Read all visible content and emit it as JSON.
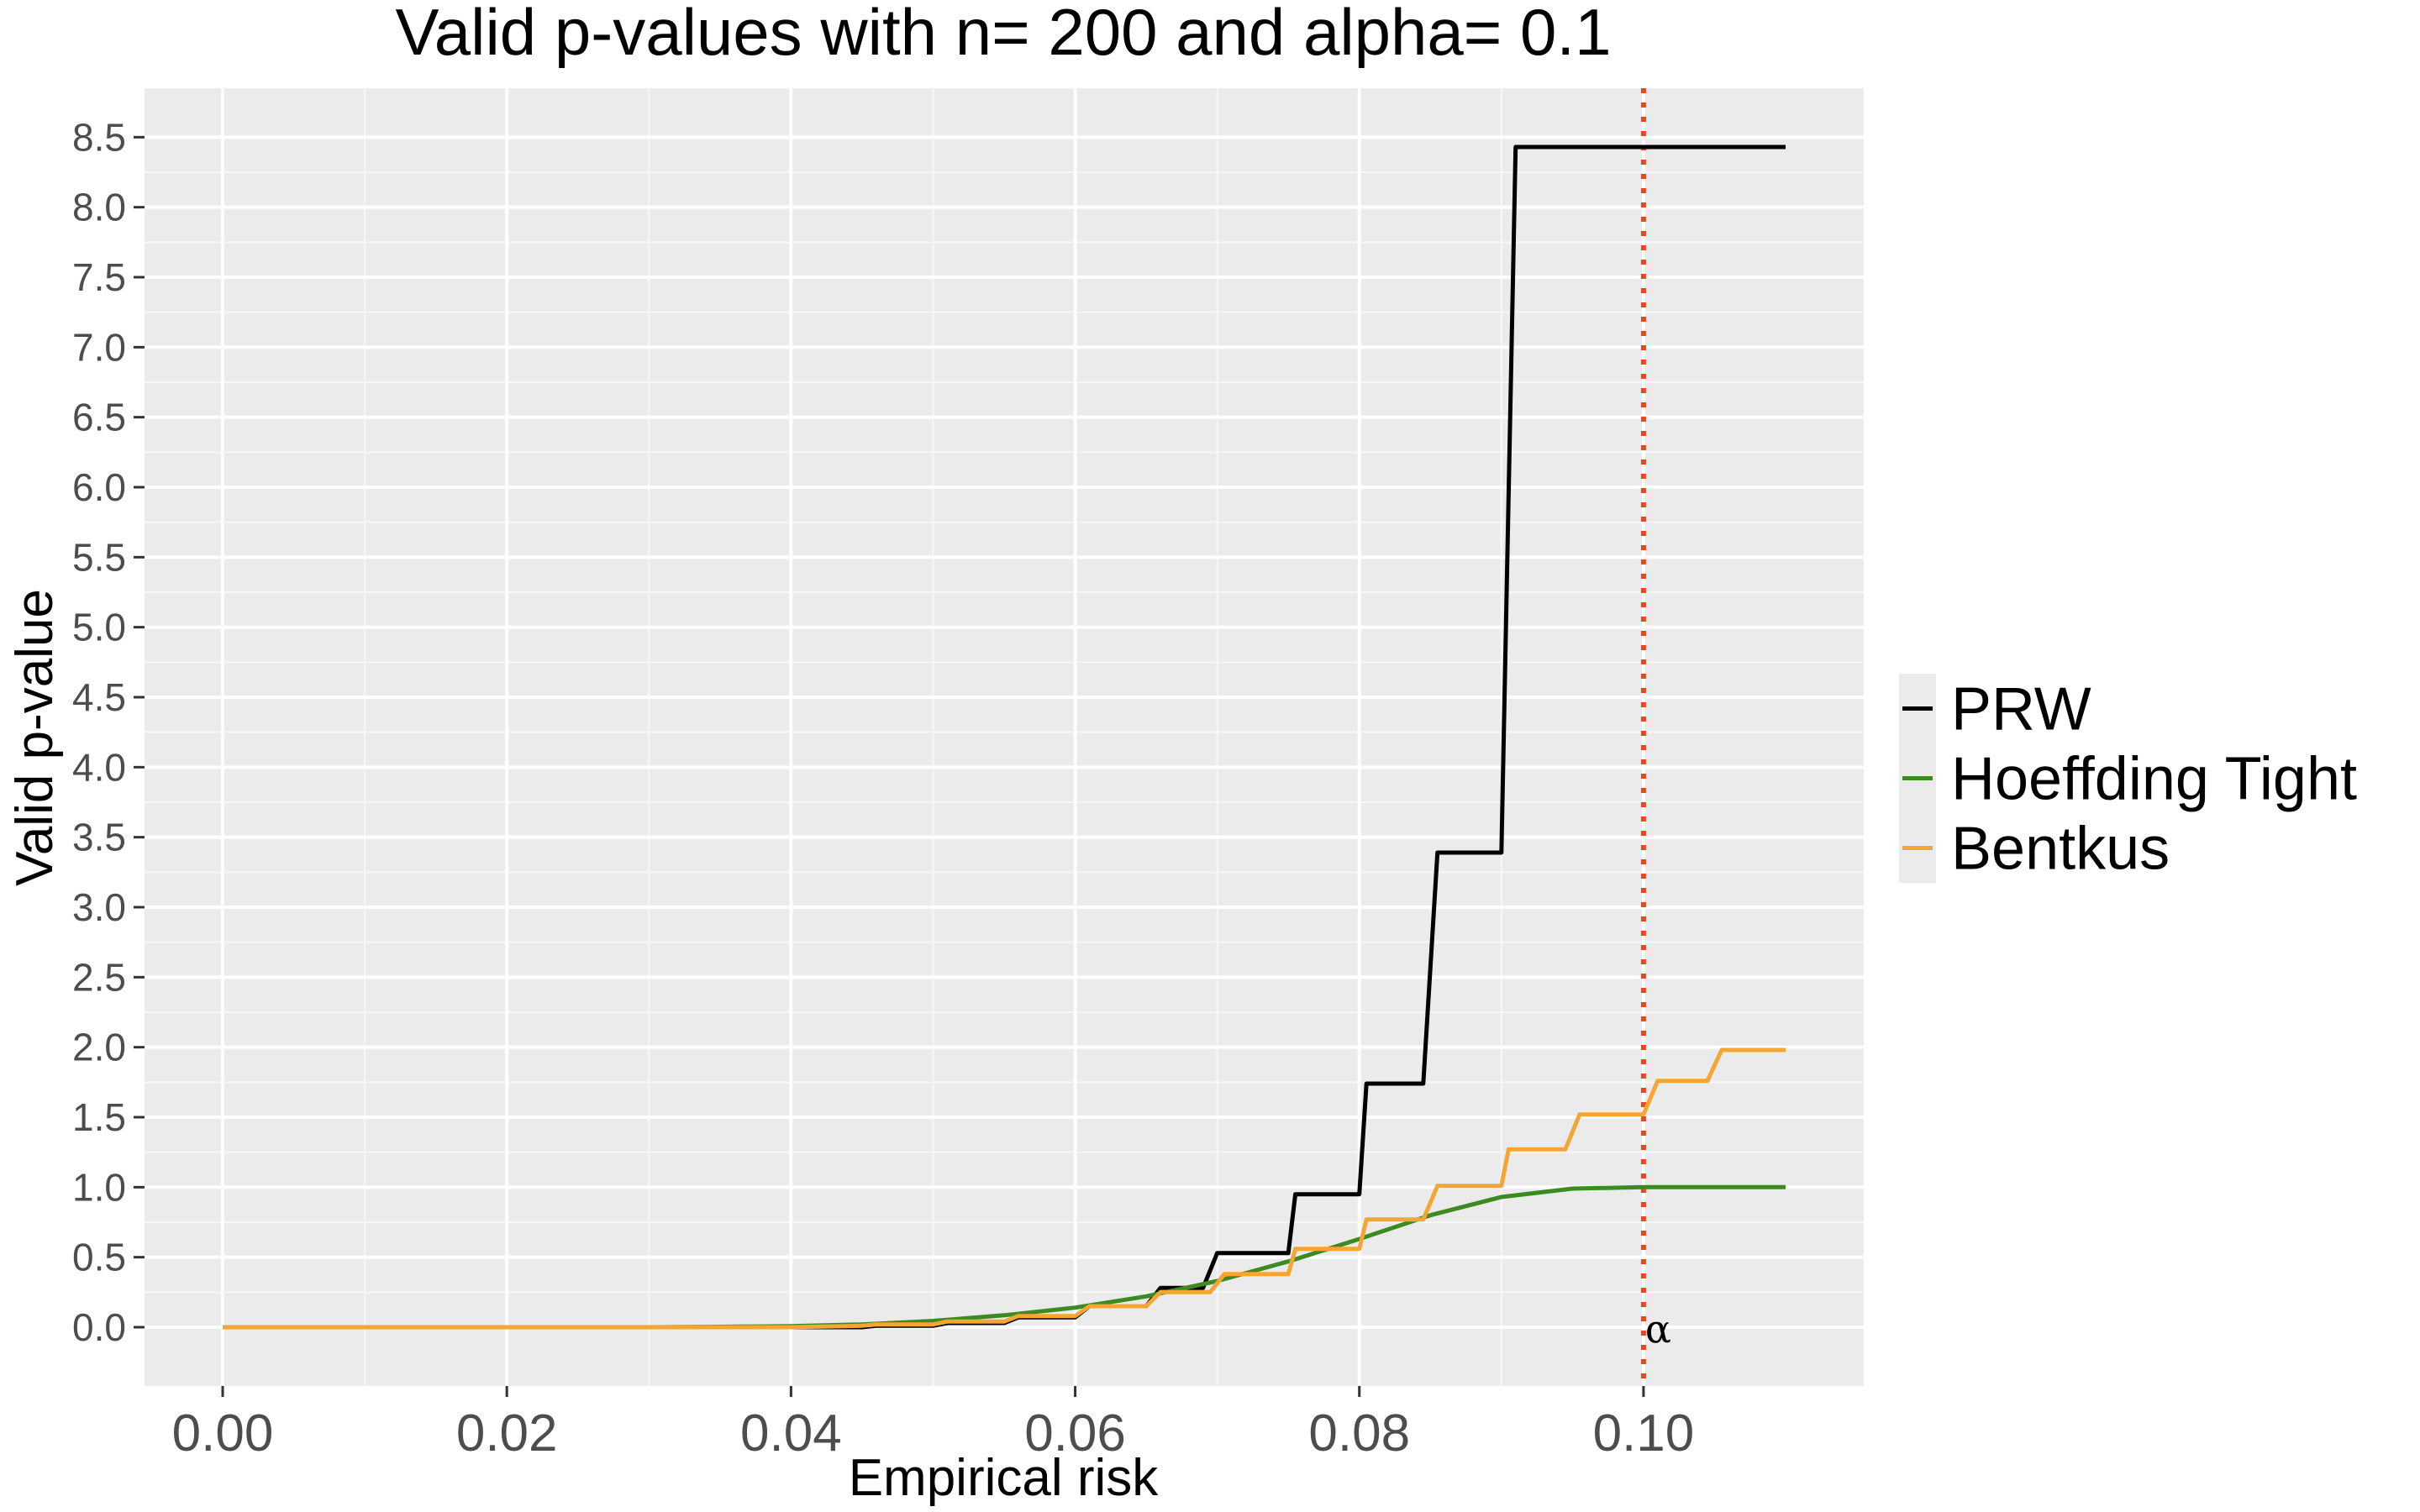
{
  "chart_data": {
    "type": "line",
    "title": "Valid p-values with n= 200  and alpha= 0.1",
    "xlabel": "Empirical risk",
    "ylabel": "Valid p-value",
    "xlim": [
      -0.0055,
      0.1155
    ],
    "ylim": [
      -0.42,
      8.85
    ],
    "xticks": [
      0.0,
      0.02,
      0.04,
      0.06,
      0.08,
      0.1
    ],
    "xtick_labels": [
      "0.00",
      "0.02",
      "0.04",
      "0.06",
      "0.08",
      "0.10"
    ],
    "yticks": [
      0.0,
      0.5,
      1.0,
      1.5,
      2.0,
      2.5,
      3.0,
      3.5,
      4.0,
      4.5,
      5.0,
      5.5,
      6.0,
      6.5,
      7.0,
      7.5,
      8.0,
      8.5
    ],
    "ytick_labels": [
      "0.0",
      "0.5",
      "1.0",
      "1.5",
      "2.0",
      "2.5",
      "3.0",
      "3.5",
      "4.0",
      "4.5",
      "5.0",
      "5.5",
      "6.0",
      "6.5",
      "7.0",
      "7.5",
      "8.0",
      "8.5"
    ],
    "grid": true,
    "legend_position": "right",
    "legend_title": "",
    "series": [
      {
        "name": "PRW",
        "color": "#000000",
        "x": [
          0.0,
          0.045,
          0.046,
          0.05,
          0.051,
          0.055,
          0.056,
          0.06,
          0.061,
          0.065,
          0.066,
          0.069,
          0.07,
          0.075,
          0.0755,
          0.08,
          0.0805,
          0.0845,
          0.0855,
          0.09,
          0.091,
          0.11
        ],
        "y": [
          0.0,
          0.0,
          0.01,
          0.01,
          0.03,
          0.03,
          0.07,
          0.07,
          0.15,
          0.15,
          0.28,
          0.28,
          0.53,
          0.53,
          0.95,
          0.95,
          1.74,
          1.74,
          3.39,
          3.39,
          8.43,
          8.43
        ]
      },
      {
        "name": "Hoeffding Tight",
        "color": "#3b8a22",
        "x": [
          0.0,
          0.03,
          0.035,
          0.04,
          0.045,
          0.05,
          0.055,
          0.06,
          0.065,
          0.07,
          0.075,
          0.08,
          0.085,
          0.09,
          0.095,
          0.1,
          0.11
        ],
        "y": [
          0.0,
          0.0,
          0.003,
          0.008,
          0.02,
          0.045,
          0.085,
          0.14,
          0.22,
          0.33,
          0.47,
          0.63,
          0.8,
          0.93,
          0.99,
          1.0,
          1.0
        ]
      },
      {
        "name": "Bentkus",
        "color": "#f5a533",
        "x": [
          0.0,
          0.04,
          0.045,
          0.046,
          0.05,
          0.051,
          0.055,
          0.056,
          0.06,
          0.061,
          0.065,
          0.066,
          0.0695,
          0.0705,
          0.075,
          0.0755,
          0.08,
          0.0805,
          0.0845,
          0.0855,
          0.09,
          0.0905,
          0.0945,
          0.0955,
          0.1,
          0.101,
          0.1045,
          0.1055,
          0.11
        ],
        "y": [
          0.0,
          0.0,
          0.01,
          0.02,
          0.02,
          0.04,
          0.04,
          0.08,
          0.08,
          0.15,
          0.15,
          0.25,
          0.25,
          0.38,
          0.38,
          0.56,
          0.56,
          0.77,
          0.77,
          1.01,
          1.01,
          1.27,
          1.27,
          1.52,
          1.52,
          1.76,
          1.76,
          1.98,
          1.98
        ]
      }
    ],
    "reference_line": {
      "orientation": "vertical",
      "x": 0.1,
      "color": "#e8461c",
      "style": "dotted",
      "label": "α"
    }
  }
}
